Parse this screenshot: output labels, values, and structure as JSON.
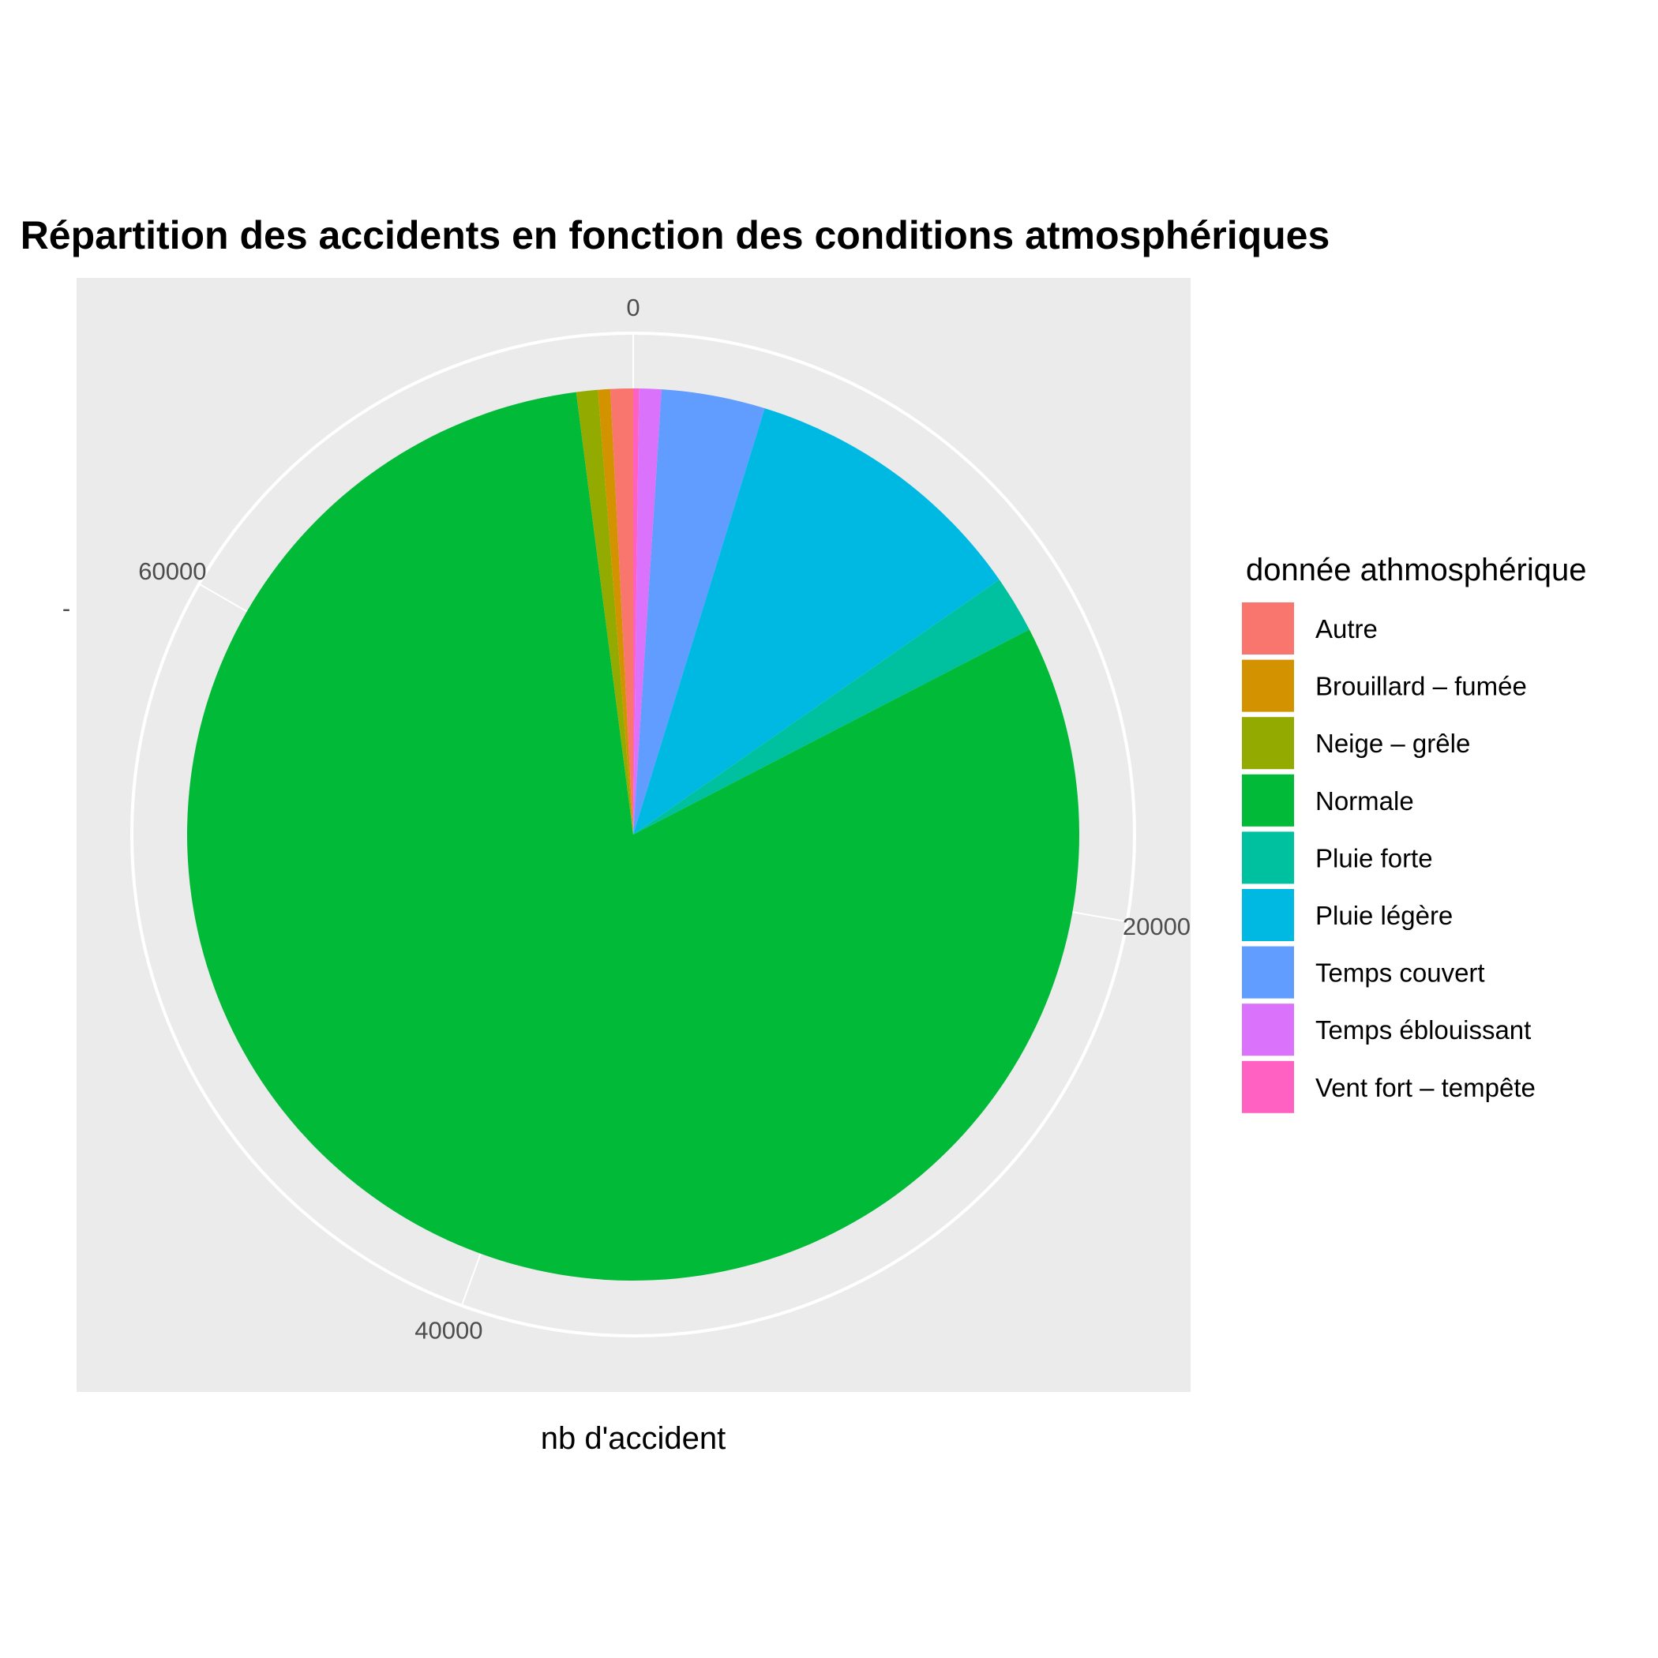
{
  "chart_data": {
    "type": "pie",
    "title": "Répartition des accidents en fonction des conditions atmosphériques",
    "xlabel": "nb d'accident",
    "ylabel": "",
    "y_tick_label": "-",
    "radial_ticks": [
      "0",
      "20000",
      "40000",
      "60000"
    ],
    "radial_tick_values": [
      0,
      20000,
      40000,
      60000
    ],
    "total": 72000,
    "legend": {
      "title": "donnée athmosphérique",
      "position": "right"
    },
    "categories": [
      "Autre",
      "Brouillard – fumée",
      "Neige – grêle",
      "Normale",
      "Pluie forte",
      "Pluie légère",
      "Temps couvert",
      "Temps éblouissant",
      "Vent fort – tempête"
    ],
    "slices_in_drawing_order": [
      {
        "label": "Vent fort – tempête",
        "value": 150,
        "color": "#FF61C3"
      },
      {
        "label": "Temps éblouissant",
        "value": 580,
        "color": "#DB72FB"
      },
      {
        "label": "Temps couvert",
        "value": 2700,
        "color": "#619CFF"
      },
      {
        "label": "Pluie légère",
        "value": 7600,
        "color": "#00B9E3"
      },
      {
        "label": "Pluie forte",
        "value": 1500,
        "color": "#00C19F"
      },
      {
        "label": "Normale",
        "value": 58000,
        "color": "#00BA38"
      },
      {
        "label": "Neige – grêle",
        "value": 560,
        "color": "#93AA00"
      },
      {
        "label": "Brouillard – fumée",
        "value": 320,
        "color": "#D39200"
      },
      {
        "label": "Autre",
        "value": 590,
        "color": "#F8766D"
      }
    ],
    "colors": {
      "Autre": "#F8766D",
      "Brouillard – fumée": "#D39200",
      "Neige – grêle": "#93AA00",
      "Normale": "#00BA38",
      "Pluie forte": "#00C19F",
      "Pluie légère": "#00B9E3",
      "Temps couvert": "#619CFF",
      "Temps éblouissant": "#DB72FB",
      "Vent fort – tempête": "#FF61C3"
    },
    "panel_background": "#EBEBEB",
    "grid_color": "#FFFFFF"
  }
}
